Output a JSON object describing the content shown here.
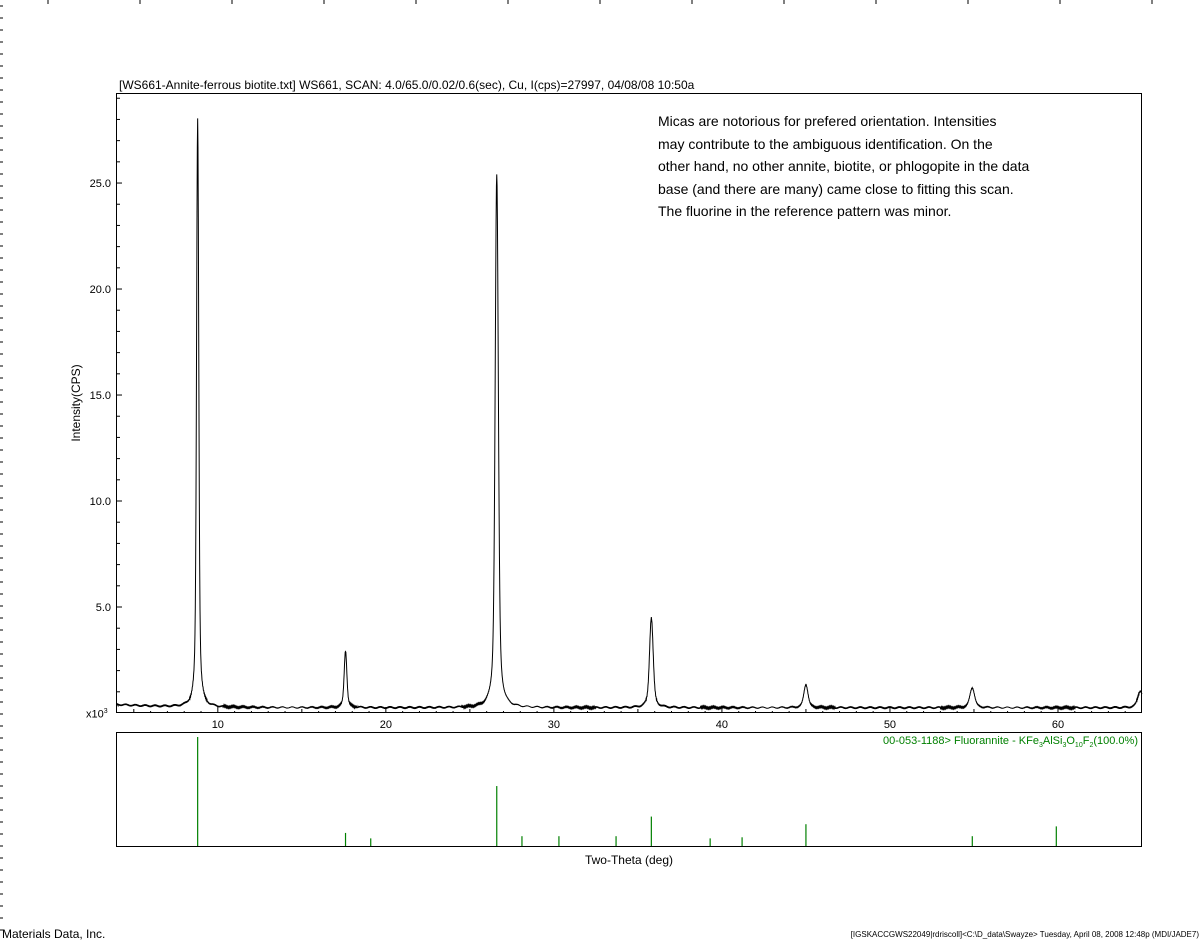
{
  "header": {
    "title": "[WS661-Annite-ferrous biotite.txt] WS661, SCAN: 4.0/65.0/0.02/0.6(sec), Cu, I(cps)=27997, 04/08/08 10:50a"
  },
  "annotation": {
    "lines": [
      "Micas are notorious for prefered orientation.  Intensities",
      "may contribute to the ambiguous identification.  On the",
      "other hand, no other annite, biotite, or phlogopite in the data",
      "base (and there are many) came close to fitting this scan.",
      "The fluorine in the reference pattern was minor."
    ]
  },
  "axes": {
    "ylabel": "Intensity(CPS)",
    "xlabel": "Two-Theta (deg)",
    "y_unit": "x10",
    "y_unit_exp": "3"
  },
  "reference": {
    "label_prefix": "00-053-1188> Fluorannite - KFe",
    "formula_parts": [
      {
        "t": "3",
        "sub": true
      },
      {
        "t": "AlSi",
        "sub": false
      },
      {
        "t": "3",
        "sub": true
      },
      {
        "t": "O",
        "sub": false
      },
      {
        "t": "10",
        "sub": true
      },
      {
        "t": "F",
        "sub": false
      },
      {
        "t": "2",
        "sub": true
      },
      {
        "t": "(100.0%)",
        "sub": false
      }
    ],
    "color": "#008000"
  },
  "footer": {
    "left": "Materials Data, Inc.",
    "right": "[IGSKACCGWS22049|rdriscoll]<C:\\D_data\\Swayze> Tuesday, April 08, 2008 12:48p (MDI/JADE7)"
  },
  "chart_data": [
    {
      "type": "line",
      "title": "[WS661-Annite-ferrous biotite.txt] WS661, SCAN: 4.0/65.0/0.02/0.6(sec), Cu, I(cps)=27997, 04/08/08 10:50a",
      "xlabel": "Two-Theta (deg)",
      "ylabel": "Intensity(CPS)",
      "xlim": [
        4.0,
        65.0
      ],
      "ylim": [
        0.0,
        29.2
      ],
      "x_ticks": [
        10,
        20,
        30,
        40,
        50,
        60
      ],
      "y_ticks": [
        5.0,
        10.0,
        15.0,
        20.0,
        25.0
      ],
      "y_tick_labels": [
        "5.0",
        "10.0",
        "15.0",
        "20.0",
        "25.0"
      ],
      "x_tick_labels": [
        "10",
        "20",
        "30",
        "40",
        "50",
        "60"
      ],
      "baseline": 0.25,
      "peaks": [
        {
          "x": 8.8,
          "y": 28.0
        },
        {
          "x": 17.6,
          "y": 2.95
        },
        {
          "x": 26.6,
          "y": 25.4
        },
        {
          "x": 35.8,
          "y": 4.5
        },
        {
          "x": 45.0,
          "y": 1.35
        },
        {
          "x": 54.9,
          "y": 1.2
        },
        {
          "x": 64.9,
          "y": 1.05
        }
      ]
    },
    {
      "type": "bar",
      "title": "00-053-1188> Fluorannite - KFe3AlSi3O10F2(100.0%)",
      "xlim": [
        4.0,
        65.0
      ],
      "sticks": [
        {
          "x": 8.8,
          "intensity": 100
        },
        {
          "x": 17.6,
          "intensity": 12
        },
        {
          "x": 19.1,
          "intensity": 7
        },
        {
          "x": 26.6,
          "intensity": 55
        },
        {
          "x": 28.1,
          "intensity": 9
        },
        {
          "x": 30.3,
          "intensity": 9
        },
        {
          "x": 33.7,
          "intensity": 9
        },
        {
          "x": 35.8,
          "intensity": 27
        },
        {
          "x": 39.3,
          "intensity": 7
        },
        {
          "x": 41.2,
          "intensity": 8
        },
        {
          "x": 45.0,
          "intensity": 20
        },
        {
          "x": 54.9,
          "intensity": 9
        },
        {
          "x": 59.9,
          "intensity": 18
        }
      ]
    }
  ]
}
